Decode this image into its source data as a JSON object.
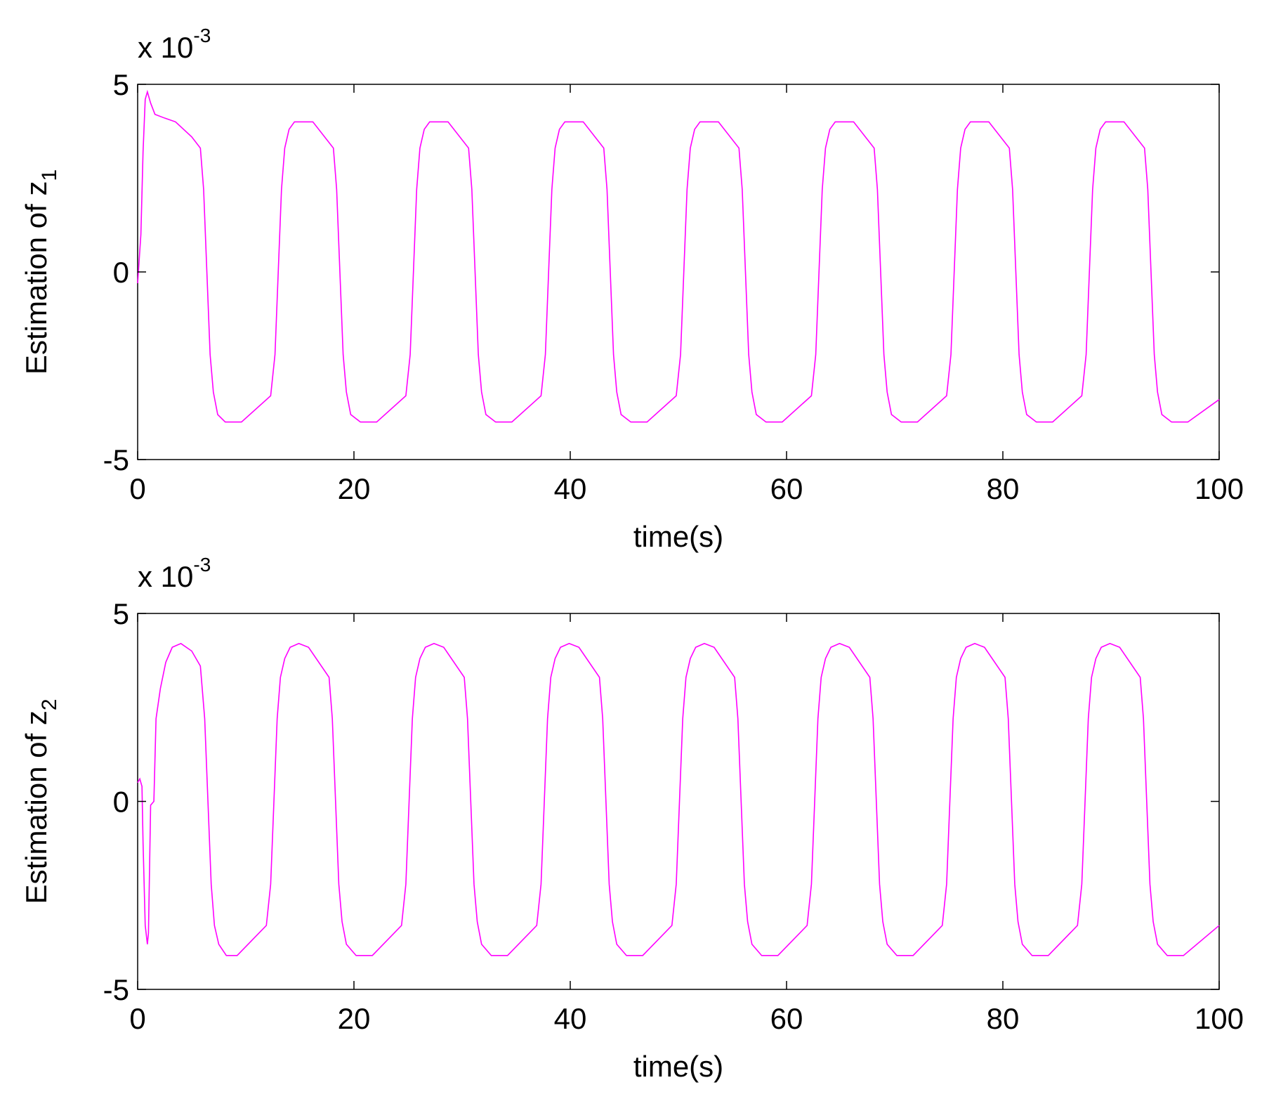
{
  "chart_data": [
    {
      "type": "line",
      "color": "#ff00ff",
      "multiplier": "x 10",
      "multiplier_exponent": "-3",
      "xlabel": "time(s)",
      "ylabel": "Estimation of z",
      "ylabel_subscript": "1",
      "xlim": [
        0,
        100
      ],
      "ylim": [
        -5,
        5
      ],
      "xticks": [
        0,
        20,
        40,
        60,
        80,
        100
      ],
      "yticks": [
        -5,
        0,
        5
      ],
      "x": [
        0,
        0.3,
        0.5,
        0.7,
        0.9,
        1.2,
        1.6,
        2.5,
        3.5,
        5.0,
        5.8,
        6.1,
        6.4,
        6.7,
        7.0,
        7.4,
        8.1,
        9.6,
        12.3,
        12.7,
        13.0,
        13.3,
        13.6,
        14.0,
        14.5,
        16.2,
        18.1,
        18.4,
        18.7,
        19.0,
        19.3,
        19.7,
        20.6,
        22.1,
        24.8,
        25.2,
        25.5,
        25.8,
        26.1,
        26.5,
        27.0,
        28.7,
        30.6,
        30.9,
        31.2,
        31.5,
        31.8,
        32.2,
        33.1,
        34.6,
        37.3,
        37.7,
        38.0,
        38.3,
        38.6,
        39.0,
        39.5,
        41.2,
        43.1,
        43.4,
        43.7,
        44.0,
        44.3,
        44.7,
        45.6,
        47.1,
        49.8,
        50.2,
        50.5,
        50.8,
        51.1,
        51.5,
        52.0,
        53.7,
        55.6,
        55.9,
        56.2,
        56.5,
        56.8,
        57.2,
        58.1,
        59.6,
        62.3,
        62.7,
        63.0,
        63.3,
        63.6,
        64.0,
        64.5,
        66.2,
        68.1,
        68.4,
        68.7,
        69.0,
        69.3,
        69.7,
        70.6,
        72.1,
        74.8,
        75.2,
        75.5,
        75.8,
        76.1,
        76.5,
        77.0,
        78.7,
        80.6,
        80.9,
        81.2,
        81.5,
        81.8,
        82.2,
        83.1,
        84.6,
        87.3,
        87.7,
        88.0,
        88.3,
        88.6,
        89.0,
        89.5,
        91.2,
        93.1,
        93.4,
        93.7,
        94.0,
        94.3,
        94.7,
        95.6,
        97.1,
        100
      ],
      "values": [
        -0.3,
        1.0,
        3.2,
        4.6,
        4.8,
        4.5,
        4.2,
        4.1,
        4.0,
        3.6,
        3.3,
        2.2,
        0,
        -2.2,
        -3.2,
        -3.8,
        -4,
        -4,
        -3.3,
        -2.2,
        0,
        2.2,
        3.3,
        3.8,
        4,
        4,
        3.3,
        2.2,
        0,
        -2.2,
        -3.2,
        -3.8,
        -4,
        -4,
        -3.3,
        -2.2,
        0,
        2.2,
        3.3,
        3.8,
        4,
        4,
        3.3,
        2.2,
        0,
        -2.2,
        -3.2,
        -3.8,
        -4,
        -4,
        -3.3,
        -2.2,
        0,
        2.2,
        3.3,
        3.8,
        4,
        4,
        3.3,
        2.2,
        0,
        -2.2,
        -3.2,
        -3.8,
        -4,
        -4,
        -3.3,
        -2.2,
        0,
        2.2,
        3.3,
        3.8,
        4,
        4,
        3.3,
        2.2,
        0,
        -2.2,
        -3.2,
        -3.8,
        -4,
        -4,
        -3.3,
        -2.2,
        0,
        2.2,
        3.3,
        3.8,
        4,
        4,
        3.3,
        2.2,
        0,
        -2.2,
        -3.2,
        -3.8,
        -4,
        -4,
        -3.3,
        -2.2,
        0,
        2.2,
        3.3,
        3.8,
        4,
        4,
        3.3,
        2.2,
        0,
        -2.2,
        -3.2,
        -3.8,
        -4,
        -4,
        -3.3,
        -2.2,
        0,
        2.2,
        3.3,
        3.8,
        4,
        4,
        3.3,
        2.2,
        0,
        -2.2,
        -3.2,
        -3.8,
        -4,
        -4,
        -3.4
      ]
    },
    {
      "type": "line",
      "color": "#ff00ff",
      "multiplier": "x 10",
      "multiplier_exponent": "-3",
      "xlabel": "time(s)",
      "ylabel": "Estimation of z",
      "ylabel_subscript": "2",
      "xlim": [
        0,
        100
      ],
      "ylim": [
        -5,
        5
      ],
      "xticks": [
        0,
        20,
        40,
        60,
        80,
        100
      ],
      "yticks": [
        -5,
        0,
        5
      ],
      "x": [
        0,
        0.2,
        0.4,
        0.5,
        0.7,
        0.9,
        1.0,
        1.2,
        1.5,
        1.7,
        2.1,
        2.6,
        3.2,
        4.0,
        5.0,
        5.8,
        6.2,
        6.5,
        6.8,
        7.1,
        7.5,
        8.2,
        9.2,
        11.9,
        12.3,
        12.6,
        12.9,
        13.2,
        13.6,
        14.1,
        14.9,
        15.8,
        17.7,
        18.0,
        18.3,
        18.6,
        18.9,
        19.3,
        20.2,
        21.7,
        24.4,
        24.8,
        25.1,
        25.4,
        25.7,
        26.1,
        26.6,
        27.4,
        28.3,
        30.2,
        30.5,
        30.8,
        31.1,
        31.4,
        31.8,
        32.7,
        34.2,
        36.9,
        37.3,
        37.6,
        37.9,
        38.2,
        38.6,
        39.1,
        39.9,
        40.8,
        42.7,
        43.0,
        43.3,
        43.6,
        43.9,
        44.3,
        45.2,
        46.7,
        49.4,
        49.8,
        50.1,
        50.4,
        50.7,
        51.1,
        51.6,
        52.4,
        53.3,
        55.2,
        55.5,
        55.8,
        56.1,
        56.4,
        56.8,
        57.7,
        59.2,
        61.9,
        62.3,
        62.6,
        62.9,
        63.2,
        63.6,
        64.1,
        64.9,
        65.8,
        67.7,
        68.0,
        68.3,
        68.6,
        68.9,
        69.3,
        70.2,
        71.7,
        74.4,
        74.8,
        75.1,
        75.4,
        75.7,
        76.1,
        76.6,
        77.4,
        78.3,
        80.2,
        80.5,
        80.8,
        81.1,
        81.4,
        81.8,
        82.7,
        84.2,
        86.9,
        87.3,
        87.6,
        87.9,
        88.2,
        88.6,
        89.1,
        89.9,
        90.8,
        92.7,
        93.0,
        93.3,
        93.6,
        93.9,
        94.3,
        95.2,
        96.7,
        100
      ],
      "values": [
        0.5,
        0.6,
        0.4,
        -1.1,
        -3.3,
        -3.8,
        -3.5,
        -0.1,
        0,
        2.2,
        3.0,
        3.7,
        4.1,
        4.2,
        4.0,
        3.6,
        2.2,
        0,
        -2.2,
        -3.3,
        -3.8,
        -4.1,
        -4.1,
        -3.3,
        -2.2,
        0,
        2.2,
        3.3,
        3.8,
        4.1,
        4.2,
        4.1,
        3.3,
        2.2,
        0,
        -2.2,
        -3.2,
        -3.8,
        -4.1,
        -4.1,
        -3.3,
        -2.2,
        0,
        2.2,
        3.3,
        3.8,
        4.1,
        4.2,
        4.1,
        3.3,
        2.2,
        0,
        -2.2,
        -3.2,
        -3.8,
        -4.1,
        -4.1,
        -3.3,
        -2.2,
        0,
        2.2,
        3.3,
        3.8,
        4.1,
        4.2,
        4.1,
        3.3,
        2.2,
        0,
        -2.2,
        -3.2,
        -3.8,
        -4.1,
        -4.1,
        -3.3,
        -2.2,
        0,
        2.2,
        3.3,
        3.8,
        4.1,
        4.2,
        4.1,
        3.3,
        2.2,
        0,
        -2.2,
        -3.2,
        -3.8,
        -4.1,
        -4.1,
        -3.3,
        -2.2,
        0,
        2.2,
        3.3,
        3.8,
        4.1,
        4.2,
        4.1,
        3.3,
        2.2,
        0,
        -2.2,
        -3.2,
        -3.8,
        -4.1,
        -4.1,
        -3.3,
        -2.2,
        0,
        2.2,
        3.3,
        3.8,
        4.1,
        4.2,
        4.1,
        3.3,
        2.2,
        0,
        -2.2,
        -3.2,
        -3.8,
        -4.1,
        -4.1,
        -3.3,
        -2.2,
        0,
        2.2,
        3.3,
        3.8,
        4.1,
        4.2,
        4.1,
        3.3,
        2.2,
        0,
        -2.2,
        -3.2,
        -3.8,
        -4.1,
        -4.1,
        -3.3
      ]
    }
  ]
}
